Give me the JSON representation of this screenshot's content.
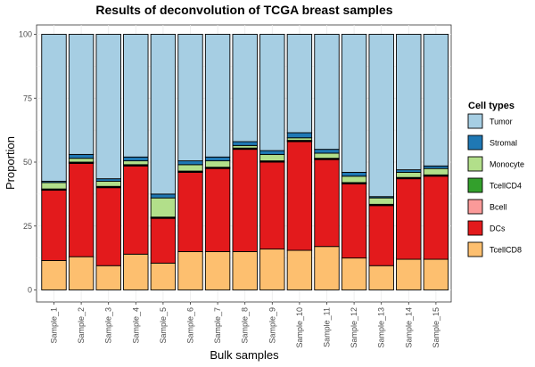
{
  "chart_data": {
    "type": "bar",
    "stacked": true,
    "title": "Results of deconvolution of TCGA breast samples",
    "xlabel": "Bulk samples",
    "ylabel": "Proportion",
    "ylim": [
      0,
      100
    ],
    "yticks": [
      0,
      25,
      50,
      75,
      100
    ],
    "grid": true,
    "legend_position": "right",
    "legend_title": "Cell types",
    "categories": [
      "Sample_1",
      "Sample_2",
      "Sample_3",
      "Sample_4",
      "Sample_5",
      "Sample_6",
      "Sample_7",
      "Sample_8",
      "Sample_9",
      "Sample_10",
      "Sample_11",
      "Sample_12",
      "Sample_13",
      "Sample_14",
      "Sample_15"
    ],
    "series": [
      {
        "name": "TcellCD8",
        "color": "#FDBF6F",
        "values": [
          11.5,
          13,
          9.5,
          14,
          10.5,
          15,
          15,
          15,
          16,
          15.5,
          17,
          12.5,
          9.5,
          12,
          12
        ]
      },
      {
        "name": "DCs",
        "color": "#E31A1C",
        "values": [
          27.5,
          36.5,
          30.5,
          34.5,
          17.5,
          31,
          32.5,
          40,
          34,
          42.5,
          34,
          29,
          23.5,
          31.5,
          32.5
        ]
      },
      {
        "name": "Bcell",
        "color": "#FB9A99",
        "values": [
          0.2,
          0.2,
          0.2,
          0.2,
          0.2,
          0.2,
          0.2,
          0.2,
          0.2,
          0.2,
          0.2,
          0.2,
          0.2,
          0.2,
          0.2
        ]
      },
      {
        "name": "TcellCD4",
        "color": "#33A02C",
        "values": [
          0.3,
          0.3,
          0.3,
          0.3,
          0.3,
          0.3,
          0.3,
          0.3,
          0.3,
          0.3,
          0.3,
          0.3,
          0.3,
          0.3,
          0.3
        ]
      },
      {
        "name": "Monocyte",
        "color": "#B2DF8A",
        "values": [
          2.5,
          1.5,
          2,
          1.5,
          7.5,
          2.5,
          2.5,
          1,
          2.5,
          1,
          2,
          2.5,
          2.5,
          2,
          2.5
        ]
      },
      {
        "name": "Stromal",
        "color": "#1F78B4",
        "values": [
          0.5,
          1.5,
          1,
          1.5,
          1.5,
          1.5,
          1.5,
          1.5,
          1.5,
          2,
          1.5,
          1.5,
          0.5,
          1,
          1
        ]
      },
      {
        "name": "Tumor",
        "color": "#A6CEE3",
        "values": [
          57.5,
          47,
          56.5,
          48,
          62.5,
          49.5,
          48,
          42,
          45.5,
          38.5,
          45,
          54,
          63.5,
          53,
          51.5
        ]
      }
    ]
  }
}
